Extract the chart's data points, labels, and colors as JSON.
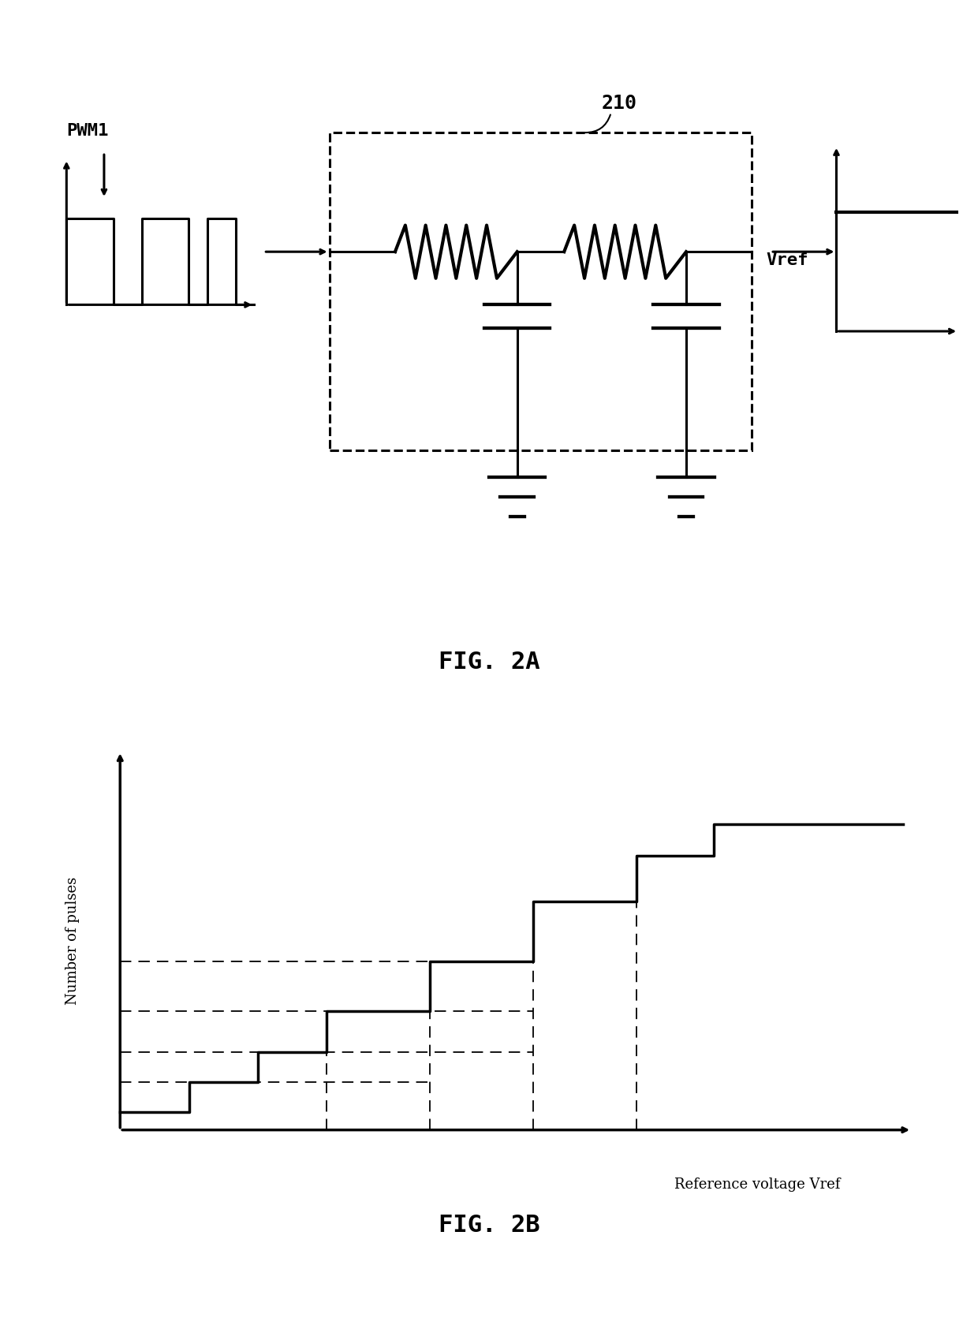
{
  "fig_width": 12.4,
  "fig_height": 16.8,
  "bg_color": "#ffffff",
  "fig2a_label": "FIG. 2A",
  "fig2b_label": "FIG. 2B",
  "label_210": "210",
  "label_pwm1": "PWM1",
  "label_vref": "Vref",
  "ylabel_2b": "Number of pulses",
  "xlabel_2b": "Reference voltage Vref",
  "line_color": "#000000"
}
